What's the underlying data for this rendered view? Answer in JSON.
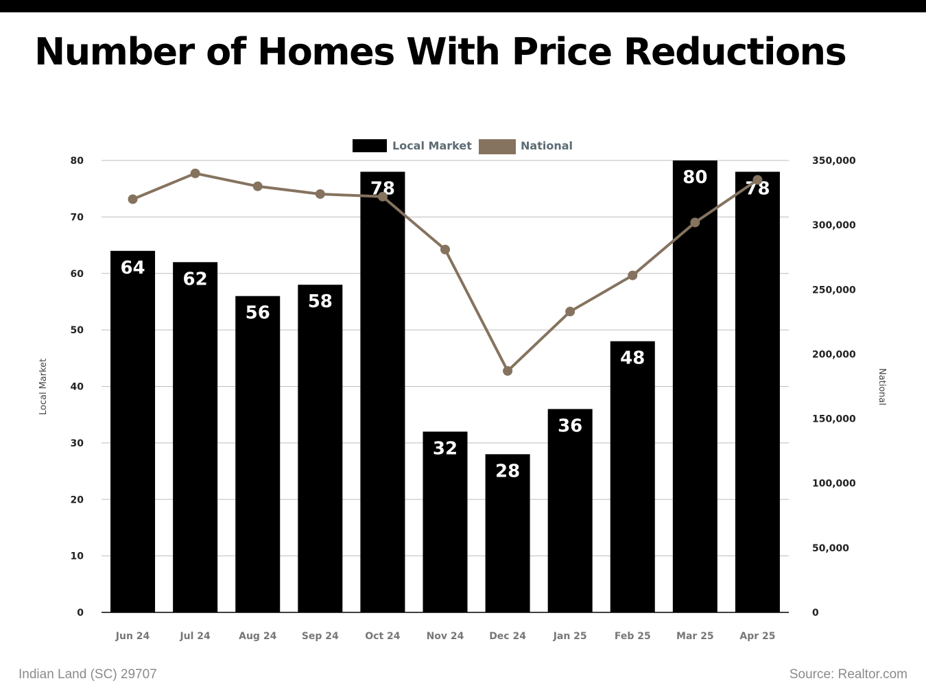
{
  "title": "Number of Homes With Price Reductions",
  "footer": {
    "location": "Indian Land (SC) 29707",
    "source": "Source: Realtor.com"
  },
  "colors": {
    "bar": "#000000",
    "line": "#85735f",
    "legend_text": "#5d6b73",
    "grid": "#bdbdbd",
    "axis_text": "#222222"
  },
  "chart_data": {
    "type": "bar",
    "categories": [
      "Jun 24",
      "Jul 24",
      "Aug 24",
      "Sep 24",
      "Oct 24",
      "Nov 24",
      "Dec 24",
      "Jan 25",
      "Feb 25",
      "Mar 25",
      "Apr 25"
    ],
    "series": [
      {
        "name": "Local Market",
        "type": "bar",
        "axis": "left",
        "values": [
          64,
          62,
          56,
          58,
          78,
          32,
          28,
          36,
          48,
          80,
          78
        ]
      },
      {
        "name": "National",
        "type": "line",
        "axis": "right",
        "values": [
          320000,
          340000,
          330000,
          324000,
          322000,
          281000,
          187000,
          233000,
          261000,
          302000,
          335000
        ]
      }
    ],
    "ylabel": "Local Market",
    "y2label": "National",
    "ylim": [
      0,
      80
    ],
    "y2lim": [
      0,
      350000
    ],
    "yticks": [
      "0",
      "10",
      "20",
      "30",
      "40",
      "50",
      "60",
      "70",
      "80"
    ],
    "y2ticks": [
      "0",
      "50,000",
      "100,000",
      "150,000",
      "200,000",
      "250,000",
      "300,000",
      "350,000"
    ],
    "legend": "top-center",
    "grid": true
  }
}
